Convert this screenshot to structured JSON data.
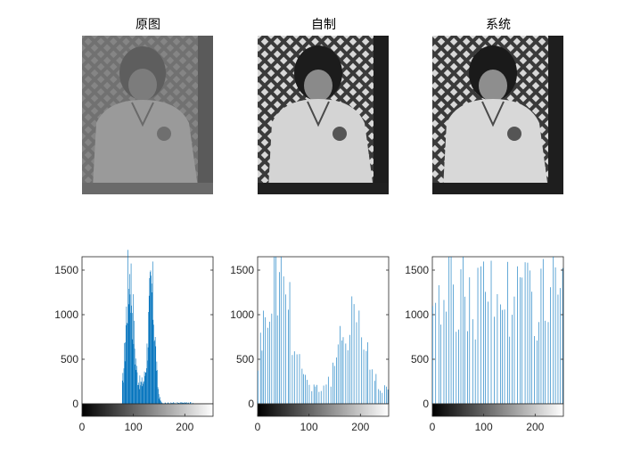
{
  "figure": {
    "colors": {
      "bar": "#0072BD",
      "axis": "#262626",
      "background": "#ffffff"
    }
  },
  "chart_data": [
    {
      "type": "image",
      "title": "原图",
      "description_key": "original"
    },
    {
      "type": "image",
      "title": "自制",
      "description_key": "self_equalized"
    },
    {
      "type": "image",
      "title": "系统",
      "description_key": "builtin_equalized"
    },
    {
      "type": "bar",
      "title": "",
      "xlim": [
        0,
        255
      ],
      "ylim": [
        0,
        1650
      ],
      "xticks": [
        0,
        100,
        200
      ],
      "yticks": [
        0,
        500,
        1000,
        1500
      ],
      "shape": "two_peaks",
      "peaks": [
        {
          "center": 92,
          "height": 1650,
          "width": 10
        },
        {
          "center": 135,
          "height": 1400,
          "width": 9
        }
      ],
      "range": [
        78,
        215
      ]
    },
    {
      "type": "bar",
      "title": "",
      "xlim": [
        0,
        255
      ],
      "ylim": [
        0,
        1650
      ],
      "xticks": [
        0,
        100,
        200
      ],
      "yticks": [
        0,
        500,
        1000,
        1500
      ],
      "shape": "spread_spikes",
      "range": [
        0,
        255
      ]
    },
    {
      "type": "bar",
      "title": "",
      "xlim": [
        0,
        255
      ],
      "ylim": [
        0,
        1650
      ],
      "xticks": [
        0,
        100,
        200
      ],
      "yticks": [
        0,
        500,
        1000,
        1500
      ],
      "shape": "flat_spikes",
      "range": [
        0,
        255
      ]
    }
  ]
}
